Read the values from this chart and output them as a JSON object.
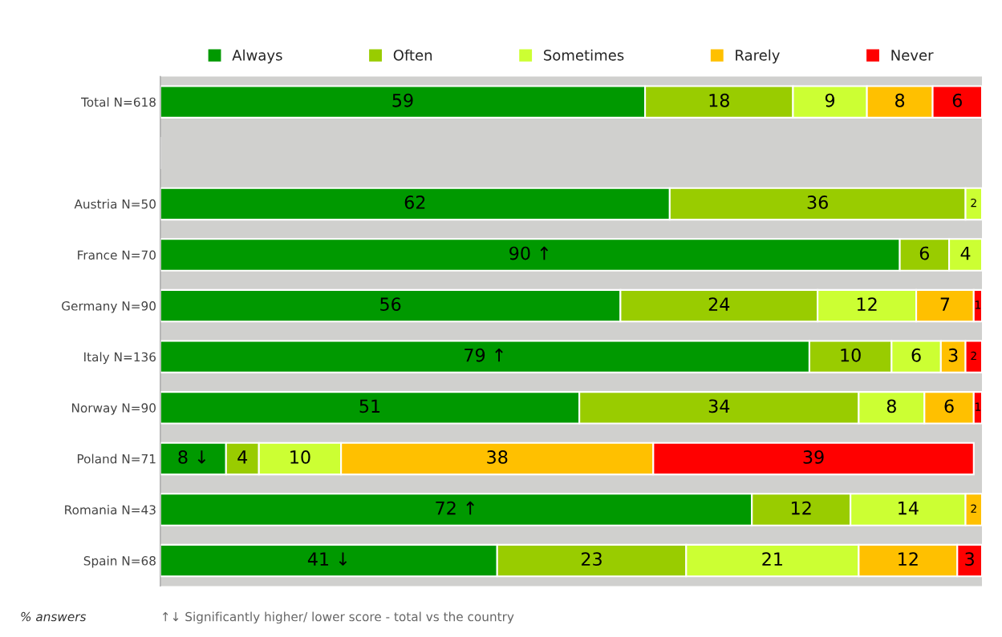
{
  "chart_data": {
    "type": "bar",
    "orientation": "horizontal",
    "stacked": true,
    "data_labels": true,
    "legend": "top",
    "categories": [
      "Total N=618",
      null,
      "Austria N=50",
      "France N=70",
      "Germany N=90",
      "Italy N=136",
      "Norway N=90",
      "Poland N=71",
      "Romania N=43",
      "Spain N=68"
    ],
    "series": [
      {
        "name": "Always",
        "color": "#009900",
        "values": [
          59,
          null,
          62,
          90,
          56,
          79,
          51,
          8,
          72,
          41
        ],
        "value_labels": [
          "59",
          null,
          "62",
          "90 ↑",
          "56",
          "79 ↑",
          "51",
          "8 ↓",
          "72 ↑",
          "41 ↓"
        ]
      },
      {
        "name": "Often",
        "color": "#99cc00",
        "values": [
          18,
          null,
          36,
          6,
          24,
          10,
          34,
          4,
          12,
          23
        ]
      },
      {
        "name": "Sometimes",
        "color": "#ccff33",
        "values": [
          9,
          null,
          2,
          4,
          12,
          6,
          8,
          10,
          14,
          21
        ]
      },
      {
        "name": "Rarely",
        "color": "#ffc000",
        "values": [
          8,
          null,
          null,
          null,
          7,
          3,
          6,
          38,
          2,
          12
        ]
      },
      {
        "name": "Never",
        "color": "#ff0000",
        "values": [
          6,
          null,
          null,
          null,
          1,
          2,
          1,
          39,
          null,
          3
        ]
      }
    ],
    "xlim": [
      0,
      100
    ],
    "annotations": [
      "% answers",
      "↑↓ Significantly higher/ lower score - total vs the country"
    ]
  }
}
